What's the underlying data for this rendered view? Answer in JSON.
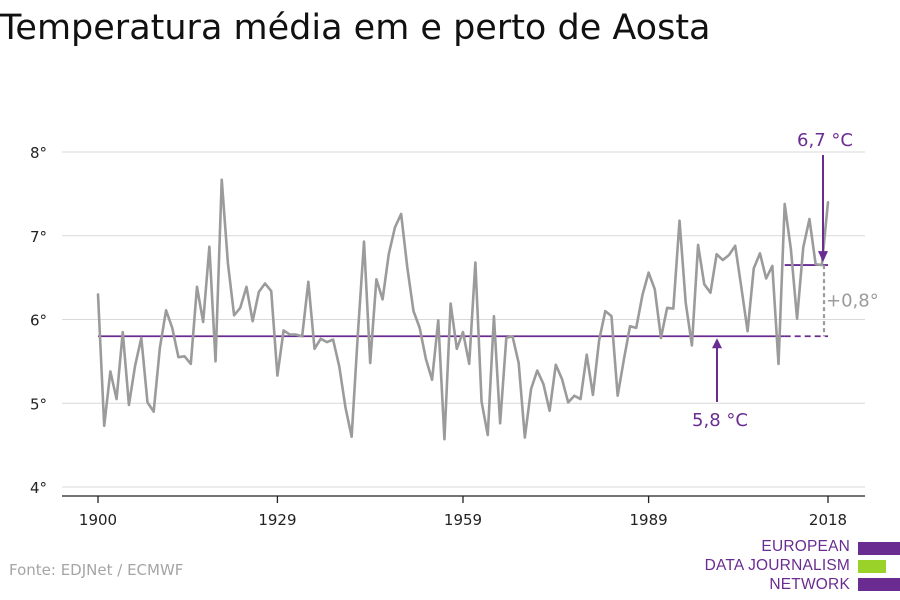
{
  "chart_data": {
    "type": "line",
    "title": "Temperatura média em e perto de Aosta",
    "xlabel": "",
    "ylabel": "",
    "xlim": [
      1900,
      2018
    ],
    "ylim": [
      4,
      8
    ],
    "x_ticks": [
      1900,
      1929,
      1959,
      1989,
      2018
    ],
    "y_ticks": [
      4,
      5,
      6,
      7,
      8
    ],
    "y_tick_labels": [
      "4°",
      "5°",
      "6°",
      "7°",
      "8°"
    ],
    "grid": true,
    "series": [
      {
        "color": "#9b9b9b",
        "x": [
          1900,
          1901,
          1902,
          1903,
          1904,
          1905,
          1906,
          1907,
          1908,
          1909,
          1910,
          1911,
          1912,
          1913,
          1914,
          1915,
          1916,
          1917,
          1918,
          1919,
          1920,
          1921,
          1922,
          1923,
          1924,
          1925,
          1926,
          1927,
          1928,
          1929,
          1930,
          1931,
          1932,
          1933,
          1934,
          1935,
          1936,
          1937,
          1938,
          1939,
          1940,
          1941,
          1942,
          1943,
          1944,
          1945,
          1946,
          1947,
          1948,
          1949,
          1950,
          1951,
          1952,
          1953,
          1954,
          1955,
          1956,
          1957,
          1958,
          1959,
          1960,
          1961,
          1962,
          1963,
          1964,
          1965,
          1966,
          1967,
          1968,
          1969,
          1970,
          1971,
          1972,
          1973,
          1974,
          1975,
          1976,
          1977,
          1978,
          1979,
          1980,
          1981,
          1982,
          1983,
          1984,
          1985,
          1986,
          1987,
          1988,
          1989,
          1990,
          1991,
          1992,
          1993,
          1994,
          1995,
          1996,
          1997,
          1998,
          1999,
          2000,
          2001,
          2002,
          2003,
          2004,
          2005,
          2006,
          2007,
          2008,
          2009,
          2010,
          2011,
          2012,
          2013,
          2014,
          2015,
          2016,
          2017,
          2018
        ],
        "values": [
          6.3,
          4.73,
          5.38,
          5.05,
          5.85,
          4.98,
          5.45,
          5.78,
          5.01,
          4.9,
          5.66,
          6.11,
          5.9,
          5.55,
          5.56,
          5.47,
          6.39,
          5.97,
          6.87,
          5.5,
          7.67,
          6.67,
          6.05,
          6.14,
          6.39,
          5.98,
          6.33,
          6.43,
          6.34,
          5.33,
          5.87,
          5.82,
          5.82,
          5.8,
          6.45,
          5.65,
          5.77,
          5.73,
          5.76,
          5.44,
          4.95,
          4.6,
          5.82,
          6.93,
          5.48,
          6.48,
          6.24,
          6.78,
          7.1,
          7.26,
          6.62,
          6.1,
          5.9,
          5.53,
          5.28,
          5.99,
          4.57,
          6.19,
          5.65,
          5.85,
          5.47,
          6.68,
          5.02,
          4.62,
          6.04,
          4.76,
          5.78,
          5.8,
          5.48,
          4.59,
          5.17,
          5.39,
          5.23,
          4.91,
          5.46,
          5.29,
          5.01,
          5.09,
          5.05,
          5.58,
          5.1,
          5.75,
          6.1,
          6.04,
          5.09,
          5.52,
          5.92,
          5.9,
          6.29,
          6.56,
          6.36,
          5.78,
          6.14,
          6.13,
          7.18,
          6.2,
          5.69,
          6.89,
          6.42,
          6.32,
          6.78,
          6.71,
          6.77,
          6.88,
          6.38,
          5.86,
          6.61,
          6.79,
          6.49,
          6.64,
          5.47,
          7.38,
          6.84,
          6.01,
          6.86,
          7.2,
          6.66,
          6.65,
          7.4
        ]
      }
    ],
    "reference_lines": [
      {
        "label": "5,8 °C",
        "value": 5.8,
        "x_start": 1900,
        "x_end": 2018,
        "color": "#6a2c91"
      },
      {
        "label": "6,7 °C",
        "value": 6.65,
        "x_start": 2011,
        "x_end": 2018,
        "color": "#6a2c91"
      }
    ],
    "difference_annotation": "+0,8°",
    "source": "Fonte: EDJNet / ECMWF"
  },
  "logo": {
    "lines": [
      "EUROPEAN",
      "DATA JOURNALISM",
      "NETWORK"
    ],
    "colors": {
      "purple": "#6a2c91",
      "green": "#9bd22a"
    }
  }
}
